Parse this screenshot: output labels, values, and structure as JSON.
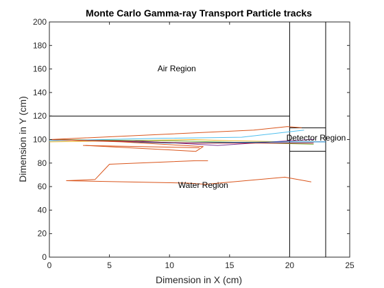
{
  "chart_data": {
    "type": "line",
    "title": "Monte Carlo Gamma-ray Transport Particle tracks",
    "xlabel": "Dimension in X (cm)",
    "ylabel": "Dimension in Y (cm)",
    "xlim": [
      0,
      25
    ],
    "ylim": [
      0,
      200
    ],
    "xticks": [
      0,
      5,
      10,
      15,
      20,
      25
    ],
    "yticks": [
      0,
      20,
      40,
      60,
      80,
      100,
      120,
      140,
      160,
      180,
      200
    ],
    "grid": false,
    "legend": "none",
    "boundaries": [
      {
        "x": [
          0,
          20
        ],
        "y": [
          120,
          120
        ],
        "color": "#000000"
      },
      {
        "x": [
          20,
          20
        ],
        "y": [
          0,
          200
        ],
        "color": "#000000"
      },
      {
        "x": [
          23,
          23
        ],
        "y": [
          0,
          200
        ],
        "color": "#000000"
      },
      {
        "x": [
          20,
          23
        ],
        "y": [
          110,
          110
        ],
        "color": "#000000"
      },
      {
        "x": [
          20,
          23
        ],
        "y": [
          90,
          90
        ],
        "color": "#000000"
      }
    ],
    "annotations": [
      {
        "text": "Air Region",
        "x": 10.6,
        "y": 158
      },
      {
        "text": "Water Region",
        "x": 12.8,
        "y": 59
      },
      {
        "text": "Detector Region",
        "x": 22.2,
        "y": 99
      }
    ],
    "series": [
      {
        "color": "#D95319",
        "x": [
          0,
          17,
          19.8,
          21
        ],
        "y": [
          100,
          108,
          111,
          110
        ]
      },
      {
        "color": "#EDB120",
        "x": [
          0,
          12,
          15,
          20
        ],
        "y": [
          98,
          100,
          99,
          98
        ]
      },
      {
        "color": "#7E2F8E",
        "x": [
          0,
          7,
          14,
          20,
          22
        ],
        "y": [
          100,
          99,
          95,
          99,
          100
        ]
      },
      {
        "color": "#77AC30",
        "x": [
          0,
          10,
          18,
          22
        ],
        "y": [
          100,
          99,
          97,
          96
        ]
      },
      {
        "color": "#4DBEEE",
        "x": [
          0,
          9,
          16,
          21.2
        ],
        "y": [
          99,
          101,
          102,
          108
        ]
      },
      {
        "color": "#0072BD",
        "x": [
          0,
          10,
          20,
          23
        ],
        "y": [
          100,
          97,
          98,
          98
        ]
      },
      {
        "color": "#A2142F",
        "x": [
          0,
          12,
          22
        ],
        "y": [
          100,
          97,
          97
        ]
      },
      {
        "color": "#D95319",
        "x": [
          2.8,
          12.5
        ],
        "y": [
          95,
          93
        ]
      },
      {
        "color": "#D95319",
        "x": [
          0,
          6,
          12.8,
          12.2,
          3.0
        ],
        "y": [
          100,
          98,
          94,
          90,
          95
        ]
      },
      {
        "color": "#D95319",
        "x": [
          13.2,
          12.2,
          5.0,
          3.8,
          1.4
        ],
        "y": [
          82,
          82,
          79,
          66,
          65
        ]
      },
      {
        "color": "#D95319",
        "x": [
          1.4,
          11.5,
          13.0,
          19.6,
          21.8
        ],
        "y": [
          65,
          63,
          62,
          68,
          64
        ]
      }
    ]
  }
}
